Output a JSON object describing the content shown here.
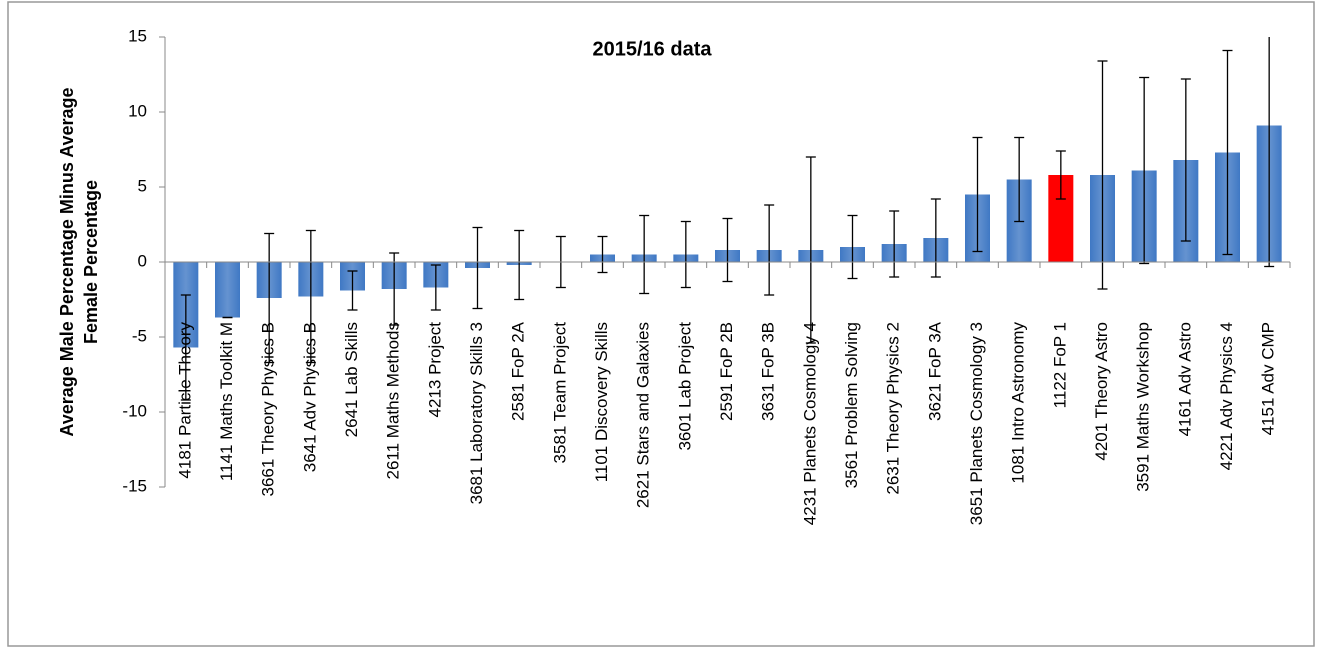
{
  "chart_data": {
    "type": "bar",
    "title": "2015/16 data",
    "ylabel": [
      "Average Male Percentage Minus Average",
      "Female Percentage"
    ],
    "categories": [
      "4181 Particle Theory",
      "1141 Maths Toolkit M",
      "3661 Theory Physics B",
      "3641 Adv Physics B",
      "2641 Lab Skills",
      "2611 Maths Methods",
      "4213 Project",
      "3681 Laboratory Skills 3",
      "2581 FoP 2A",
      "3581 Team Project",
      "1101 Discovery Skills",
      "2621 Stars and Galaxies",
      "3601 Lab Project",
      "2591 FoP 2B",
      "3631 FoP 3B",
      "4231 Planets Cosmology 4",
      "3561 Problem Solving",
      "2631 Theory Physics 2",
      "3621 FoP 3A",
      "3651 Planets Cosmology 3",
      "1081 Intro Astronomy",
      "1122 FoP 1",
      "4201 Theory Astro",
      "3591 Maths Workshop",
      "4161 Adv Astro",
      "4221 Adv Physics 4",
      "4151 Adv CMP"
    ],
    "values": [
      -5.7,
      -3.7,
      -2.4,
      -2.3,
      -1.9,
      -1.8,
      -1.7,
      -0.4,
      -0.2,
      0,
      0.5,
      0.5,
      0.5,
      0.8,
      0.8,
      0.8,
      1.0,
      1.2,
      1.6,
      4.5,
      5.5,
      5.8,
      5.8,
      6.1,
      6.8,
      7.3,
      9.1
    ],
    "errors": [
      3.5,
      0,
      4.3,
      4.4,
      1.3,
      2.4,
      1.5,
      2.7,
      2.3,
      1.7,
      1.2,
      2.6,
      2.2,
      2.1,
      3.0,
      6.2,
      2.1,
      2.2,
      2.6,
      3.8,
      2.8,
      1.6,
      7.6,
      6.2,
      5.4,
      6.8,
      9.4
    ],
    "colors": [
      "#3f78c4",
      "#3f78c4",
      "#3f78c4",
      "#3f78c4",
      "#3f78c4",
      "#3f78c4",
      "#3f78c4",
      "#3f78c4",
      "#3f78c4",
      "#3f78c4",
      "#3f78c4",
      "#3f78c4",
      "#3f78c4",
      "#3f78c4",
      "#3f78c4",
      "#3f78c4",
      "#3f78c4",
      "#3f78c4",
      "#3f78c4",
      "#3f78c4",
      "#3f78c4",
      "#ff0000",
      "#3f78c4",
      "#3f78c4",
      "#3f78c4",
      "#3f78c4",
      "#3f78c4"
    ],
    "ylim": [
      -15,
      15
    ],
    "yticks": [
      -15,
      -10,
      -5,
      0,
      5,
      10,
      15
    ],
    "grid": false
  }
}
